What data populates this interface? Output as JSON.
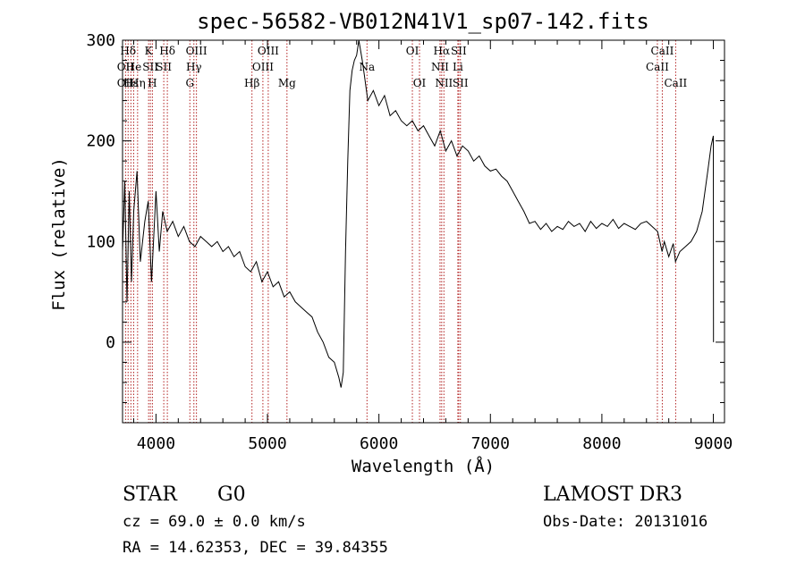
{
  "chart_data": {
    "type": "line",
    "title": "spec-56582-VB012N41V1_sp07-142.fits",
    "xlabel": "Wavelength (Å)",
    "ylabel": "Flux (relative)",
    "xlim": [
      3700,
      9100
    ],
    "ylim": [
      -80,
      300
    ],
    "xticks": [
      4000,
      5000,
      6000,
      7000,
      8000,
      9000
    ],
    "yticks": [
      0,
      100,
      200,
      300
    ],
    "grid": false,
    "line_color": "#000000",
    "marker_color": "#b22222",
    "series": [
      {
        "x": [
          3700,
          3720,
          3740,
          3760,
          3780,
          3800,
          3830,
          3860,
          3900,
          3930,
          3960,
          4000,
          4030,
          4060,
          4100,
          4150,
          4200,
          4250,
          4300,
          4350,
          4400,
          4450,
          4500,
          4550,
          4600,
          4650,
          4700,
          4750,
          4800,
          4850,
          4900,
          4950,
          5000,
          5050,
          5100,
          5150,
          5200,
          5250,
          5300,
          5350,
          5400,
          5450,
          5500,
          5550,
          5600,
          5640,
          5660,
          5680,
          5700,
          5720,
          5740,
          5760,
          5780,
          5800,
          5820,
          5850,
          5870,
          5900,
          5950,
          6000,
          6050,
          6100,
          6150,
          6200,
          6250,
          6300,
          6350,
          6400,
          6450,
          6500,
          6550,
          6600,
          6650,
          6700,
          6750,
          6800,
          6850,
          6900,
          6950,
          7000,
          7050,
          7100,
          7150,
          7200,
          7250,
          7300,
          7350,
          7400,
          7450,
          7500,
          7550,
          7600,
          7650,
          7700,
          7750,
          7800,
          7850,
          7900,
          7950,
          8000,
          8050,
          8100,
          8150,
          8200,
          8250,
          8300,
          8350,
          8400,
          8450,
          8500,
          8540,
          8560,
          8600,
          8640,
          8660,
          8700,
          8750,
          8800,
          8850,
          8900,
          8950,
          8980,
          9000,
          9001
        ],
        "y": [
          90,
          160,
          40,
          150,
          60,
          130,
          170,
          80,
          120,
          140,
          60,
          150,
          90,
          130,
          110,
          120,
          105,
          115,
          100,
          95,
          105,
          100,
          95,
          100,
          90,
          95,
          85,
          90,
          75,
          70,
          80,
          60,
          70,
          55,
          60,
          45,
          50,
          40,
          35,
          30,
          25,
          10,
          0,
          -15,
          -20,
          -35,
          -45,
          -30,
          90,
          180,
          250,
          270,
          280,
          285,
          300,
          280,
          265,
          240,
          250,
          235,
          245,
          225,
          230,
          220,
          215,
          220,
          210,
          215,
          205,
          195,
          210,
          190,
          200,
          185,
          195,
          190,
          180,
          185,
          175,
          170,
          172,
          165,
          160,
          150,
          140,
          130,
          118,
          120,
          112,
          118,
          110,
          115,
          112,
          120,
          115,
          118,
          110,
          120,
          113,
          118,
          115,
          122,
          113,
          118,
          115,
          112,
          118,
          120,
          115,
          110,
          90,
          100,
          85,
          98,
          80,
          90,
          95,
          100,
          110,
          130,
          170,
          195,
          205,
          0
        ]
      }
    ],
    "lines": [
      {
        "label": "Hδ",
        "x": 3750,
        "row": 0
      },
      {
        "label": "OII",
        "x": 3727,
        "row": 1
      },
      {
        "label": "OII",
        "x": 3727,
        "row": 2
      },
      {
        "label": "Hε",
        "x": 3775,
        "row": 2
      },
      {
        "label": "He",
        "x": 3800,
        "row": 1
      },
      {
        "label": "K",
        "x": 3934,
        "row": 0
      },
      {
        "label": "SII",
        "x": 3950,
        "row": 1
      },
      {
        "label": "Hη",
        "x": 3835,
        "row": 2
      },
      {
        "label": "H",
        "x": 3968,
        "row": 2
      },
      {
        "label": "Hδ",
        "x": 4102,
        "row": 0
      },
      {
        "label": "SII",
        "x": 4070,
        "row": 1
      },
      {
        "label": "OIII",
        "x": 4363,
        "row": 0
      },
      {
        "label": "Hγ",
        "x": 4340,
        "row": 1
      },
      {
        "label": "G",
        "x": 4304,
        "row": 2
      },
      {
        "label": "Hβ",
        "x": 4861,
        "row": 2
      },
      {
        "label": "OIII",
        "x": 5007,
        "row": 0
      },
      {
        "label": "OIII",
        "x": 4959,
        "row": 1
      },
      {
        "label": "Mg",
        "x": 5175,
        "row": 2
      },
      {
        "label": "Na",
        "x": 5893,
        "row": 1
      },
      {
        "label": "OI",
        "x": 6300,
        "row": 0
      },
      {
        "label": "OI",
        "x": 6364,
        "row": 2
      },
      {
        "label": "Hα",
        "x": 6563,
        "row": 0
      },
      {
        "label": "NII",
        "x": 6548,
        "row": 1
      },
      {
        "label": "NII",
        "x": 6583,
        "row": 2
      },
      {
        "label": "SII",
        "x": 6716,
        "row": 0
      },
      {
        "label": "Li",
        "x": 6708,
        "row": 1
      },
      {
        "label": "SII",
        "x": 6731,
        "row": 2
      },
      {
        "label": "CaII",
        "x": 8542,
        "row": 0
      },
      {
        "label": "CaII",
        "x": 8498,
        "row": 1
      },
      {
        "label": "CaII",
        "x": 8662,
        "row": 2
      }
    ]
  },
  "footer": {
    "object_class": "STAR",
    "subclass": "G0",
    "survey": "LAMOST DR3",
    "redshift": "cz = 69.0 ± 0.0 km/s",
    "obs_date": "Obs-Date: 20131016",
    "coords": "RA =  14.62353, DEC =  39.84355"
  }
}
